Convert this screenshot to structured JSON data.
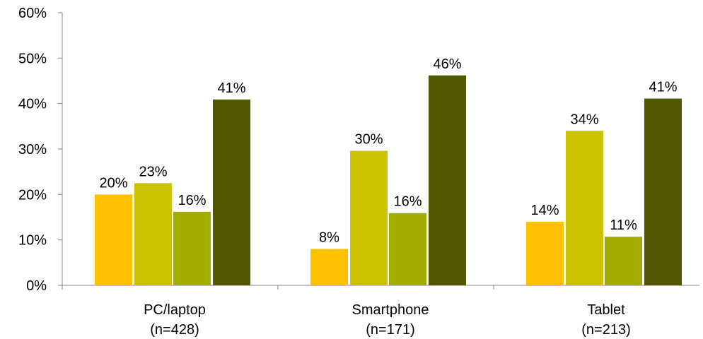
{
  "chart_data": {
    "type": "bar",
    "categories": [
      {
        "line1": "PC/laptop",
        "line2": "(n=428)"
      },
      {
        "line1": "Smartphone",
        "line2": "(n=171)"
      },
      {
        "line1": "Tablet",
        "line2": "(n=213)"
      }
    ],
    "series": [
      {
        "values": [
          20,
          8,
          14
        ],
        "labels": [
          "20%",
          "8%",
          "14%"
        ],
        "color": "#FFC000"
      },
      {
        "values": [
          22.5,
          29.6,
          34
        ],
        "labels": [
          "23%",
          "30%",
          "34%"
        ],
        "color": "#CCC200"
      },
      {
        "values": [
          16.2,
          15.9,
          10.7
        ],
        "labels": [
          "16%",
          "16%",
          "11%"
        ],
        "color": "#A3AD00"
      },
      {
        "values": [
          40.9,
          46.2,
          41.1
        ],
        "labels": [
          "41%",
          "46%",
          "41%"
        ],
        "color": "#525800"
      }
    ],
    "yticks": [
      {
        "value": 0,
        "label": "0%"
      },
      {
        "value": 10,
        "label": "10%"
      },
      {
        "value": 20,
        "label": "20%"
      },
      {
        "value": 30,
        "label": "30%"
      },
      {
        "value": 40,
        "label": "40%"
      },
      {
        "value": 50,
        "label": "50%"
      },
      {
        "value": 60,
        "label": "60%"
      }
    ],
    "ylim": [
      0,
      60
    ],
    "grid": false,
    "legend": "none"
  }
}
